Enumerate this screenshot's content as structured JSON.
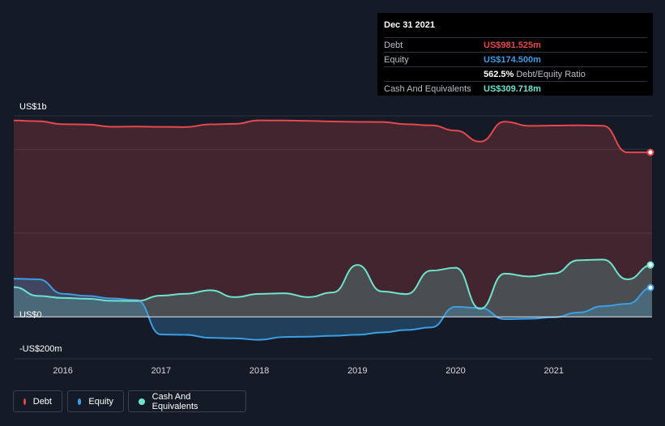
{
  "tooltip": {
    "date": "Dec 31 2021",
    "rows": [
      {
        "label": "Debt",
        "value": "US$981.525m",
        "color": "#e4484d"
      },
      {
        "label": "Equity",
        "value": "US$174.500m",
        "color": "#3c9ee5"
      },
      {
        "label": "",
        "value": "562.5%",
        "suffix": "Debt/Equity Ratio",
        "color": "#ffffff"
      },
      {
        "label": "Cash And Equivalents",
        "value": "US$309.718m",
        "color": "#6ee3cf"
      }
    ]
  },
  "legend": [
    {
      "label": "Debt",
      "color": "#e4484d"
    },
    {
      "label": "Equity",
      "color": "#3c9ee5"
    },
    {
      "label": "Cash And Equivalents",
      "color": "#6ee3cf"
    }
  ],
  "chart_data": {
    "type": "area",
    "title": "",
    "xlabel": "",
    "ylabel": "",
    "y_axis_labels": [
      "US$1b",
      "US$0",
      "-US$200m"
    ],
    "x_ticks": [
      "2016",
      "2017",
      "2018",
      "2019",
      "2020",
      "2021"
    ],
    "xlim": [
      2015.5,
      2022.0
    ],
    "ylim": [
      -250,
      1200
    ],
    "grid": true,
    "legend_position": "bottom-left",
    "series": [
      {
        "name": "Debt",
        "color": "#e4484d",
        "x": [
          2015.5,
          2015.75,
          2016.0,
          2016.25,
          2016.5,
          2016.75,
          2017.0,
          2017.25,
          2017.5,
          2017.75,
          2018.0,
          2018.25,
          2018.5,
          2018.75,
          2019.0,
          2019.25,
          2019.5,
          2019.75,
          2020.0,
          2020.25,
          2020.5,
          2020.75,
          2021.0,
          2021.25,
          2021.5,
          2021.75,
          2022.0
        ],
        "values": [
          1172,
          1168,
          1150,
          1148,
          1135,
          1136,
          1134,
          1133,
          1149,
          1152,
          1173,
          1172,
          1170,
          1166,
          1164,
          1163,
          1150,
          1143,
          1112,
          1046,
          1165,
          1140,
          1142,
          1143,
          1141,
          982,
          982
        ]
      },
      {
        "name": "Equity",
        "color": "#3c9ee5",
        "x": [
          2015.5,
          2015.75,
          2016.0,
          2016.25,
          2016.5,
          2016.75,
          2017.0,
          2017.25,
          2017.5,
          2017.75,
          2018.0,
          2018.25,
          2018.5,
          2018.75,
          2019.0,
          2019.25,
          2019.5,
          2019.75,
          2020.0,
          2020.25,
          2020.5,
          2020.75,
          2021.0,
          2021.25,
          2021.5,
          2021.75,
          2022.0
        ],
        "values": [
          228,
          224,
          138,
          125,
          110,
          101,
          -105,
          -107,
          -125,
          -128,
          -137,
          -120,
          -118,
          -113,
          -107,
          -93,
          -78,
          -63,
          60,
          53,
          -13,
          -11,
          -2,
          26,
          64,
          78,
          174.5
        ]
      },
      {
        "name": "Cash And Equivalents",
        "color": "#6ee3cf",
        "x": [
          2015.5,
          2015.75,
          2016.0,
          2016.25,
          2016.5,
          2016.75,
          2017.0,
          2017.25,
          2017.5,
          2017.75,
          2018.0,
          2018.25,
          2018.5,
          2018.75,
          2019.0,
          2019.25,
          2019.5,
          2019.75,
          2020.0,
          2020.25,
          2020.5,
          2020.75,
          2021.0,
          2021.25,
          2021.5,
          2021.75,
          2022.0
        ],
        "values": [
          178,
          125,
          113,
          108,
          96,
          95,
          127,
          138,
          159,
          118,
          137,
          141,
          118,
          146,
          310,
          152,
          136,
          276,
          293,
          48,
          258,
          241,
          259,
          338,
          342,
          224,
          310
        ]
      }
    ]
  }
}
